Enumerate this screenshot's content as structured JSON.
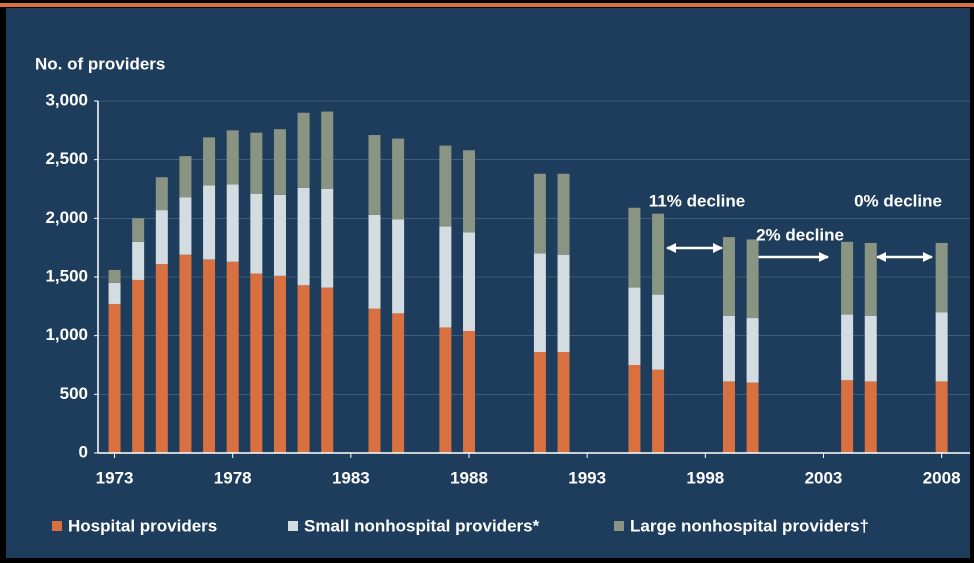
{
  "chart_data": {
    "type": "stacked_bar",
    "y_label": "No. of providers",
    "x": [
      1973,
      1974,
      1975,
      1976,
      1977,
      1978,
      1979,
      1980,
      1981,
      1982,
      1984,
      1985,
      1987,
      1988,
      1991,
      1992,
      1995,
      1996,
      1999,
      2000,
      2004,
      2005,
      2008
    ],
    "series": [
      {
        "name": "Hospital providers",
        "color": "#d9703f",
        "values": [
          1270,
          1475,
          1610,
          1690,
          1650,
          1630,
          1530,
          1510,
          1430,
          1410,
          1230,
          1190,
          1070,
          1040,
          860,
          860,
          750,
          710,
          610,
          600,
          620,
          610,
          610
        ]
      },
      {
        "name": "Small nonhospital providers*",
        "color": "#d3dde1",
        "values": [
          180,
          325,
          460,
          490,
          630,
          660,
          680,
          690,
          830,
          840,
          800,
          800,
          860,
          840,
          840,
          830,
          660,
          640,
          560,
          550,
          560,
          560,
          590
        ]
      },
      {
        "name": "Large nonhospital providers†",
        "color": "#8a9482",
        "values": [
          110,
          200,
          280,
          350,
          410,
          460,
          520,
          560,
          640,
          660,
          680,
          690,
          690,
          700,
          680,
          690,
          680,
          690,
          670,
          670,
          620,
          620,
          590
        ]
      }
    ],
    "xlim": [
      1972.3,
      2009.2
    ],
    "xticks": [
      1973,
      1978,
      1983,
      1988,
      1993,
      1998,
      2003,
      2008
    ],
    "ylim": [
      0,
      3000
    ],
    "yticks": [
      0,
      500,
      {
        "value": 1000,
        "label": "1,000"
      },
      {
        "value": 1500,
        "label": "1,500"
      },
      {
        "value": 2000,
        "label": "2,000"
      },
      {
        "value": 2500,
        "label": "2,500"
      },
      {
        "value": 3000,
        "label": "3,000"
      }
    ],
    "grid": true,
    "legend": "bottom",
    "annotations": [
      "11% decline",
      "2% decline",
      "0% decline"
    ]
  }
}
